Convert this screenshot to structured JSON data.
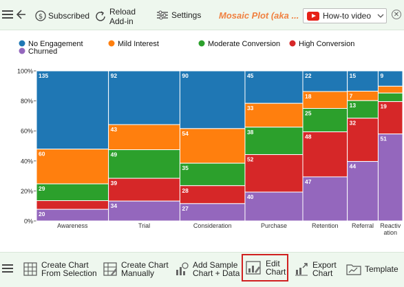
{
  "toolbar": {
    "subscribed": "Subscribed",
    "reload": "Reload\nAdd-in",
    "settings": "Settings",
    "title": "Mosaic Plot (aka ...",
    "howto": "How-to video"
  },
  "bottom_toolbar": {
    "create_from_selection": "Create Chart\nFrom Selection",
    "create_manually": "Create Chart\nManually",
    "add_sample": "Add Sample\nChart + Data",
    "edit_chart": "Edit\nChart",
    "export_chart": "Export\nChart",
    "template": "Template"
  },
  "colors": {
    "No Engagement": "#1f77b4",
    "Mild Interest": "#ff7f0e",
    "Moderate Conversion": "#2ca02c",
    "High Conversion": "#d62728",
    "Churned": "#9467bd"
  },
  "chart_data": {
    "type": "mosaic",
    "title": "",
    "xlabel": "",
    "ylabel": "",
    "ylim": [
      0,
      100
    ],
    "y_ticks": [
      "0%",
      "20%",
      "40%",
      "60%",
      "80%",
      "100%"
    ],
    "legend_position": "top-left",
    "categories": [
      "Awareness",
      "Trial",
      "Consideration",
      "Purchase",
      "Retention",
      "Referral",
      "Reactivation"
    ],
    "category_labels": [
      "Awareness",
      "Trial",
      "Consideration",
      "Purchase",
      "Retention",
      "Referral",
      "Reactiv\nation"
    ],
    "series": [
      {
        "name": "No Engagement",
        "values": [
          135,
          92,
          90,
          45,
          22,
          15,
          9
        ]
      },
      {
        "name": "Mild Interest",
        "values": [
          60,
          43,
          54,
          33,
          18,
          7,
          4
        ]
      },
      {
        "name": "Moderate Conversion",
        "values": [
          29,
          49,
          35,
          38,
          25,
          13,
          5
        ]
      },
      {
        "name": "High Conversion",
        "values": [
          15,
          39,
          28,
          52,
          48,
          32,
          19
        ]
      },
      {
        "name": "Churned",
        "values": [
          20,
          34,
          27,
          40,
          47,
          44,
          51
        ]
      }
    ],
    "segment_labels": [
      [
        "135",
        "92",
        "90",
        "45",
        "22",
        "15",
        "9"
      ],
      [
        "60",
        "43",
        "54",
        "33",
        "18",
        "7",
        ""
      ],
      [
        "29",
        "49",
        "35",
        "38",
        "25",
        "13",
        ""
      ],
      [
        "",
        "39",
        "28",
        "52",
        "48",
        "32",
        "19"
      ],
      [
        "20",
        "34",
        "27",
        "40",
        "47",
        "44",
        "51"
      ]
    ]
  }
}
